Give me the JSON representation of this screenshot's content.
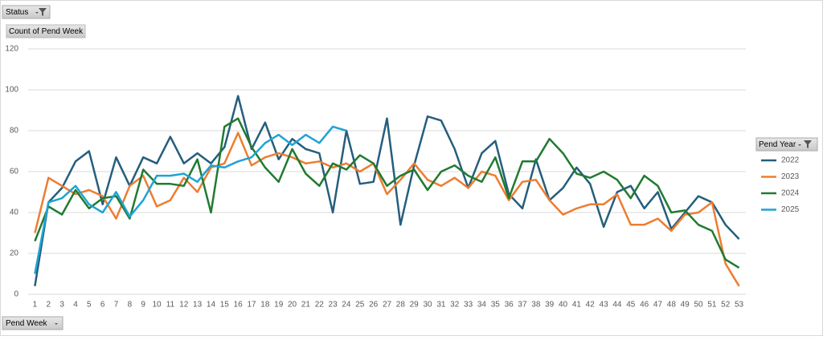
{
  "pivot": {
    "report_filter": "Status",
    "values_field": "Count of Pend Week",
    "legend_field": "Pend Year",
    "axis_field": "Pend Week"
  },
  "chart_data": {
    "type": "line",
    "categories": [
      1,
      2,
      3,
      4,
      5,
      6,
      7,
      8,
      9,
      10,
      11,
      12,
      13,
      14,
      15,
      16,
      17,
      18,
      19,
      20,
      21,
      22,
      23,
      24,
      25,
      26,
      27,
      28,
      29,
      30,
      31,
      32,
      33,
      34,
      35,
      36,
      37,
      38,
      39,
      40,
      41,
      42,
      43,
      44,
      45,
      46,
      47,
      48,
      49,
      50,
      51,
      52,
      53
    ],
    "series": [
      {
        "name": "2022",
        "color": "#255e7d",
        "values": [
          4,
          45,
          52,
          65,
          70,
          44,
          67,
          53,
          67,
          64,
          77,
          64,
          69,
          64,
          72,
          97,
          71,
          84,
          66,
          76,
          71,
          69,
          40,
          80,
          54,
          55,
          86,
          34,
          63,
          87,
          85,
          71,
          52,
          69,
          75,
          49,
          42,
          66,
          46,
          52,
          62,
          54,
          33,
          50,
          53,
          42,
          50,
          32,
          40,
          48,
          45,
          34,
          27
        ]
      },
      {
        "name": "2023",
        "color": "#ed7d31",
        "values": [
          30,
          57,
          53,
          49,
          51,
          48,
          37,
          53,
          58,
          43,
          46,
          57,
          50,
          62,
          64,
          79,
          63,
          67,
          69,
          67,
          64,
          65,
          62,
          64,
          60,
          64,
          49,
          56,
          64,
          56,
          53,
          57,
          52,
          60,
          58,
          46,
          55,
          56,
          46,
          39,
          42,
          44,
          44,
          49,
          34,
          34,
          37,
          31,
          39,
          40,
          45,
          15,
          4
        ]
      },
      {
        "name": "2024",
        "color": "#217a31",
        "values": [
          26,
          43,
          39,
          51,
          42,
          47,
          48,
          37,
          61,
          54,
          54,
          53,
          66,
          40,
          82,
          86,
          72,
          62,
          55,
          71,
          59,
          53,
          64,
          61,
          68,
          64,
          53,
          58,
          61,
          51,
          60,
          63,
          58,
          55,
          67,
          47,
          65,
          65,
          76,
          69,
          59,
          57,
          60,
          56,
          47,
          58,
          53,
          40,
          41,
          34,
          31,
          17,
          13
        ]
      },
      {
        "name": "2025",
        "color": "#1ea3d5",
        "values": [
          10,
          45,
          47,
          53,
          44,
          40,
          50,
          38,
          46,
          58,
          58,
          59,
          55,
          63,
          62,
          65,
          67,
          74,
          78,
          73,
          78,
          74,
          82,
          80,
          null,
          null,
          null,
          null,
          null,
          null,
          null,
          null,
          null,
          null,
          null,
          null,
          null,
          null,
          null,
          null,
          null,
          null,
          null,
          null,
          null,
          null,
          null,
          null,
          null,
          null,
          null,
          null,
          null
        ]
      }
    ],
    "ylim": [
      0,
      120
    ],
    "yticks": [
      0,
      20,
      40,
      60,
      80,
      100,
      120
    ],
    "grid": true
  }
}
